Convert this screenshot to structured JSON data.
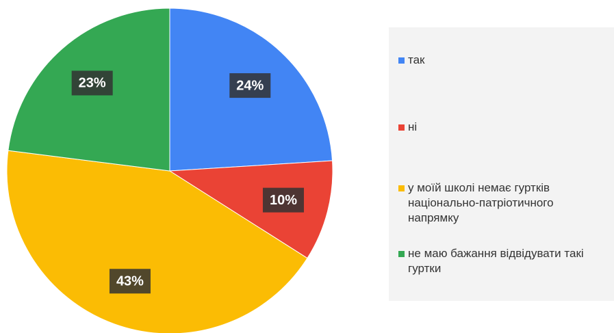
{
  "chart_data": {
    "type": "pie",
    "categories": [
      "так",
      "ні",
      "у моїй школі немає гуртків національно-патріотичного напрямку",
      "не маю бажання відвідувати такі гуртки"
    ],
    "values": [
      24,
      10,
      43,
      23
    ],
    "value_labels": [
      "24%",
      "10%",
      "43%",
      "23%"
    ],
    "colors": [
      "#4285f4",
      "#ea4335",
      "#fbbc04",
      "#34a853"
    ]
  }
}
